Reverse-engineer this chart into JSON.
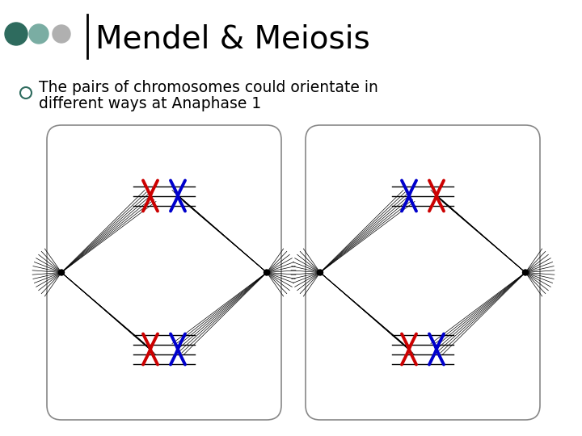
{
  "title": "Mendel & Meiosis",
  "bullet_text_line1": "The pairs of chromosomes could orientate in",
  "bullet_text_line2": "different ways at Anaphase 1",
  "bg_color": "#ffffff",
  "title_color": "#000000",
  "text_color": "#000000",
  "dot_colors": [
    "#2e6b5e",
    "#7aada3",
    "#b0b0b0"
  ],
  "red": "#cc0000",
  "blue": "#0000cc",
  "black": "#000000"
}
